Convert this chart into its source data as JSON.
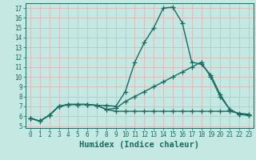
{
  "title": "",
  "xlabel": "Humidex (Indice chaleur)",
  "ylabel": "",
  "xlim": [
    -0.5,
    23.5
  ],
  "ylim": [
    4.8,
    17.5
  ],
  "xticks": [
    0,
    1,
    2,
    3,
    4,
    5,
    6,
    7,
    8,
    9,
    10,
    11,
    12,
    13,
    14,
    15,
    16,
    17,
    18,
    19,
    20,
    21,
    22,
    23
  ],
  "yticks": [
    5,
    6,
    7,
    8,
    9,
    10,
    11,
    12,
    13,
    14,
    15,
    16,
    17
  ],
  "bg_color": "#c4e8e2",
  "grid_color": "#e0b8b8",
  "line_color": "#1a6b60",
  "line1_x": [
    0,
    1,
    2,
    3,
    4,
    5,
    6,
    7,
    8,
    9,
    10,
    11,
    12,
    13,
    14,
    15,
    16,
    17,
    18,
    19,
    20,
    21,
    22,
    23
  ],
  "line1_y": [
    5.8,
    5.5,
    6.1,
    7.0,
    7.2,
    7.2,
    7.2,
    7.1,
    7.1,
    7.0,
    8.5,
    11.5,
    13.5,
    15.0,
    17.0,
    17.1,
    15.5,
    11.5,
    11.3,
    10.2,
    8.2,
    6.7,
    6.2,
    6.1
  ],
  "line2_x": [
    0,
    1,
    2,
    3,
    4,
    5,
    6,
    7,
    8,
    9,
    10,
    11,
    12,
    13,
    14,
    15,
    16,
    17,
    18,
    19,
    20,
    21,
    22,
    23
  ],
  "line2_y": [
    5.8,
    5.5,
    6.1,
    7.0,
    7.2,
    7.2,
    7.2,
    7.1,
    6.7,
    6.5,
    6.5,
    6.5,
    6.5,
    6.5,
    6.5,
    6.5,
    6.5,
    6.5,
    6.5,
    6.5,
    6.5,
    6.5,
    6.3,
    6.2
  ],
  "line3_x": [
    0,
    1,
    2,
    3,
    4,
    5,
    6,
    7,
    8,
    9,
    10,
    11,
    12,
    13,
    14,
    15,
    16,
    17,
    18,
    19,
    20,
    21,
    22,
    23
  ],
  "line3_y": [
    5.8,
    5.5,
    6.1,
    7.0,
    7.2,
    7.2,
    7.2,
    7.1,
    6.7,
    6.8,
    7.5,
    8.0,
    8.5,
    9.0,
    9.5,
    10.0,
    10.5,
    11.0,
    11.5,
    10.0,
    8.0,
    6.7,
    6.2,
    6.1
  ],
  "marker_size": 4,
  "linewidth": 1.0,
  "tick_fontsize": 5.5,
  "xlabel_fontsize": 7.5
}
